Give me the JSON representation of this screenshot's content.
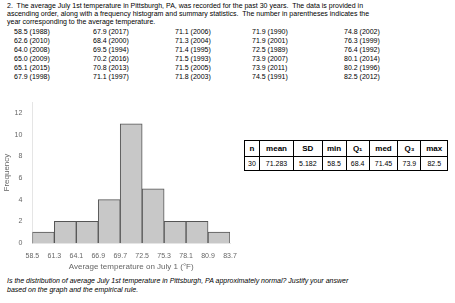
{
  "text_above": [
    "2.  The average July 1st temperature in Pittsburgh, PA, was recorded for the past 30 years.  The data is provided in",
    "ascending order, along with a frequency histogram and summary statistics.  The number in parentheses indicates the",
    "year corresponding to the average temperature."
  ],
  "data_columns": [
    [
      "58.5 (1988)",
      "62.6 (2010)",
      "64.0 (2008)",
      "65.0 (2009)",
      "65.1 (2015)",
      "67.9 (1998)"
    ],
    [
      "67.9 (2017)",
      "68.4 (2000)",
      "69.5 (1994)",
      "70.2 (2016)",
      "70.8 (2013)",
      "71.1 (1997)"
    ],
    [
      "71.1 (2006)",
      "71.3 (2004)",
      "71.4 (1995)",
      "71.5 (1993)",
      "71.5 (2005)",
      "71.8 (2003)"
    ],
    [
      "71.9 (1990)",
      "71.9 (2001)",
      "72.5 (1989)",
      "73.9 (2007)",
      "73.9 (2011)",
      "74.5 (1991)"
    ],
    [
      "74.8 (2002)",
      "76.3 (1999)",
      "76.4 (1992)",
      "80.1 (2014)",
      "80.2 (1996)",
      "82.5 (2012)"
    ]
  ],
  "table": {
    "headers": [
      "n",
      "mean",
      "SD",
      "min",
      "Q₁",
      "med",
      "Q₃",
      "max"
    ],
    "values": [
      "30",
      "71.283",
      "5.182",
      "58.5",
      "68.4",
      "71.45",
      "73.9",
      "82.5"
    ]
  },
  "text_below": [
    "Is the distribution of average July 1st temperature in Pittsburgh, PA approximately normal? Justify your answer",
    "based on the graph and the empirical rule."
  ],
  "chart_data": {
    "type": "histogram",
    "bins": [
      58.5,
      61.3,
      64.1,
      66.9,
      69.7,
      72.5,
      75.3,
      78.1,
      80.9,
      83.7
    ],
    "values": [
      1,
      2,
      2,
      4,
      11,
      5,
      2,
      2,
      1
    ],
    "color": "#c8c8c8",
    "xlabel": "Average temperature on July 1 (°F)",
    "ylabel": "Frequency",
    "xlim": [
      58.5,
      83.7
    ],
    "xticks": [
      58.5,
      61.3,
      64.1,
      66.9,
      69.7,
      72.5,
      75.3,
      78.1,
      80.9,
      83.7
    ],
    "ylim": [
      0,
      13
    ],
    "yticks": [
      0,
      2,
      4,
      6,
      8,
      10,
      12
    ],
    "grid": false
  }
}
